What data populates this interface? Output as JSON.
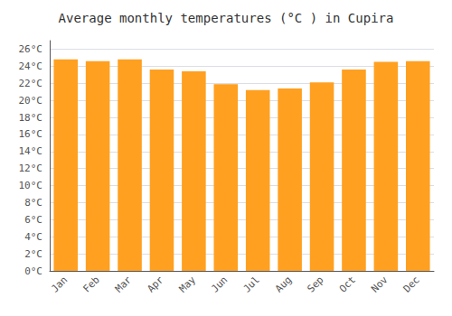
{
  "chart_data": {
    "type": "bar",
    "title": "Average monthly temperatures (°C ) in Cupira",
    "categories": [
      "Jan",
      "Feb",
      "Mar",
      "Apr",
      "May",
      "Jun",
      "Jul",
      "Aug",
      "Sep",
      "Oct",
      "Nov",
      "Dec"
    ],
    "values": [
      24.8,
      24.6,
      24.8,
      23.6,
      23.4,
      21.9,
      21.2,
      21.4,
      22.1,
      23.6,
      24.5,
      24.6
    ],
    "color": "#FFA020",
    "ylim": [
      0,
      27
    ],
    "yticks": [
      {
        "value": 0,
        "label": "0°C"
      },
      {
        "value": 2,
        "label": "2°C"
      },
      {
        "value": 4,
        "label": "4°C"
      },
      {
        "value": 6,
        "label": "6°C"
      },
      {
        "value": 8,
        "label": "8°C"
      },
      {
        "value": 10,
        "label": "10°C"
      },
      {
        "value": 12,
        "label": "12°C"
      },
      {
        "value": 14,
        "label": "14°C"
      },
      {
        "value": 16,
        "label": "16°C"
      },
      {
        "value": 18,
        "label": "18°C"
      },
      {
        "value": 20,
        "label": "20°C"
      },
      {
        "value": 22,
        "label": "22°C"
      },
      {
        "value": 24,
        "label": "24°C"
      },
      {
        "value": 26,
        "label": "26°C"
      }
    ],
    "grid": true
  }
}
